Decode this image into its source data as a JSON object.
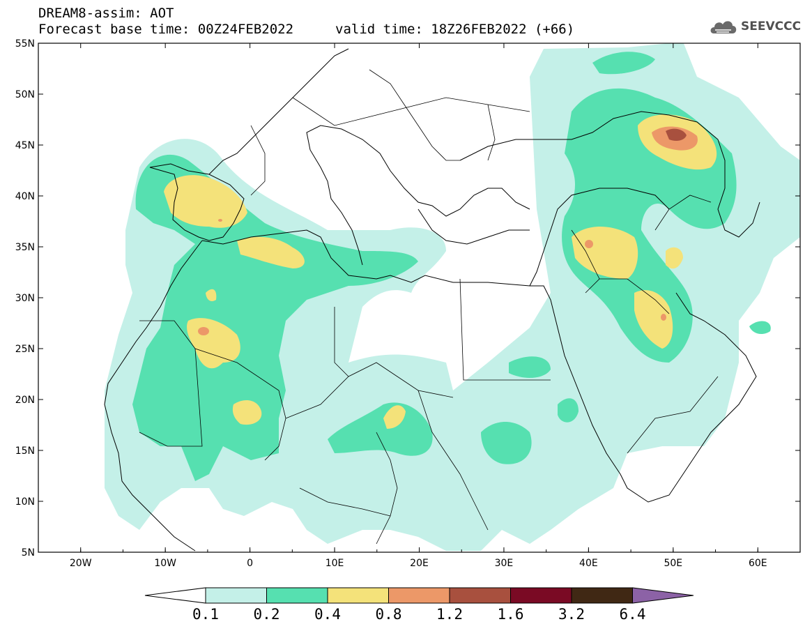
{
  "header": {
    "title": "DREAM8-assim: AOT",
    "base_time": "Forecast base time: 00Z24FEB2022",
    "valid_time": "valid time: 18Z26FEB2022 (+66)",
    "logo_text": "SEEVCCC"
  },
  "map": {
    "region": "North Africa, Europe and Middle East",
    "lon_labels": [
      "20W",
      "10W",
      "0",
      "10E",
      "20E",
      "30E",
      "40E",
      "50E",
      "60E"
    ],
    "lat_labels": [
      "55N",
      "50N",
      "45N",
      "40N",
      "35N",
      "30N",
      "25N",
      "20N",
      "15N",
      "10N",
      "5N"
    ],
    "lon_range": [
      -25,
      65
    ],
    "lat_range": [
      5,
      55
    ]
  },
  "legend": {
    "levels": [
      "0.1",
      "0.2",
      "0.4",
      "0.8",
      "1.2",
      "1.6",
      "3.2",
      "6.4"
    ],
    "colors": [
      "#ffffff",
      "#c4f0e8",
      "#56e0b0",
      "#f4e27a",
      "#ec9868",
      "#a8503e",
      "#7a0a24",
      "#402814",
      "#8c62a6"
    ]
  }
}
